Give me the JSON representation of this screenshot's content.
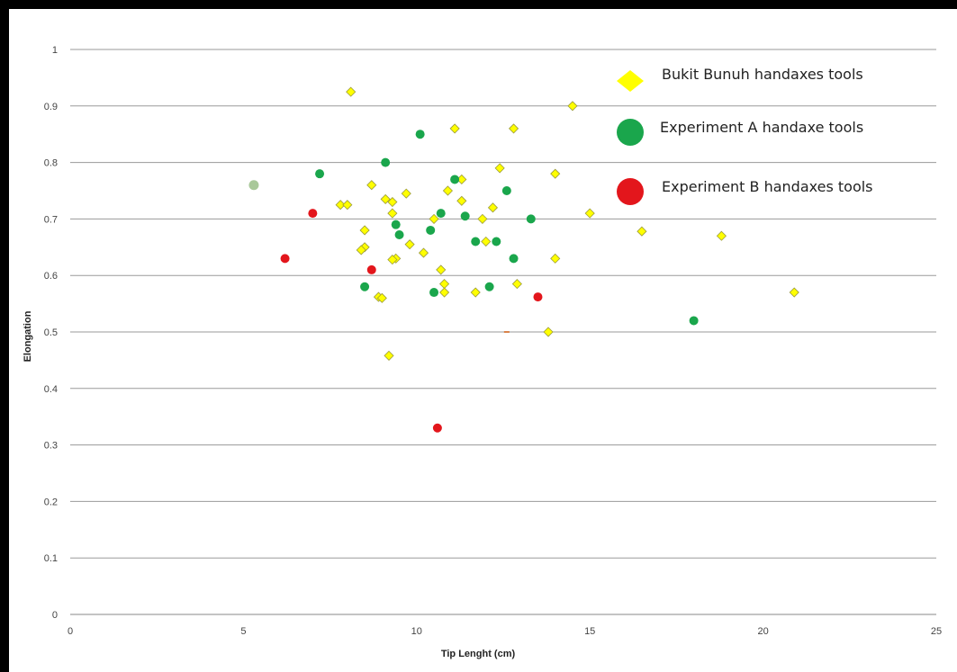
{
  "chart_data": {
    "type": "scatter",
    "xlabel": "Tip Lenght (cm)",
    "ylabel": "Elongation",
    "xlim": [
      0,
      25
    ],
    "ylim": [
      0,
      1
    ],
    "x_ticks": [
      0,
      5,
      10,
      15,
      20,
      25
    ],
    "y_ticks": [
      0,
      0.1,
      0.2,
      0.3,
      0.4,
      0.5,
      0.6,
      0.7,
      0.8,
      0.9,
      1
    ],
    "grid": "horizontal",
    "legend_position": "top-right",
    "series": [
      {
        "name": "Bukit Bunuh handaxes tools",
        "marker": "diamond",
        "color": "#ffff00",
        "points": [
          [
            8.1,
            0.925
          ],
          [
            14.5,
            0.9
          ],
          [
            12.8,
            0.86
          ],
          [
            11.1,
            0.86
          ],
          [
            12.4,
            0.79
          ],
          [
            14,
            0.78
          ],
          [
            11.3,
            0.77
          ],
          [
            8.7,
            0.76
          ],
          [
            10.9,
            0.75
          ],
          [
            9.7,
            0.745
          ],
          [
            9.1,
            0.735
          ],
          [
            11.3,
            0.732
          ],
          [
            9.3,
            0.73
          ],
          [
            7.8,
            0.725
          ],
          [
            8,
            0.725
          ],
          [
            12.2,
            0.72
          ],
          [
            9.3,
            0.71
          ],
          [
            15,
            0.71
          ],
          [
            11.9,
            0.7
          ],
          [
            10.5,
            0.7
          ],
          [
            8.5,
            0.68
          ],
          [
            16.5,
            0.678
          ],
          [
            18.8,
            0.67
          ],
          [
            12,
            0.66
          ],
          [
            9.8,
            0.655
          ],
          [
            8.5,
            0.65
          ],
          [
            8.4,
            0.645
          ],
          [
            10.2,
            0.64
          ],
          [
            9.4,
            0.63
          ],
          [
            9.3,
            0.628
          ],
          [
            14,
            0.63
          ],
          [
            10.7,
            0.61
          ],
          [
            10.8,
            0.585
          ],
          [
            12.9,
            0.585
          ],
          [
            11.7,
            0.57
          ],
          [
            10.8,
            0.57
          ],
          [
            20.9,
            0.57
          ],
          [
            8.9,
            0.562
          ],
          [
            9,
            0.56
          ],
          [
            13.8,
            0.5
          ],
          [
            9.2,
            0.458
          ]
        ]
      },
      {
        "name": "Experiment A handaxe tools",
        "marker": "circle",
        "color": "#1aa64c",
        "points": [
          [
            10.1,
            0.85
          ],
          [
            9.1,
            0.8
          ],
          [
            7.2,
            0.78
          ],
          [
            11.1,
            0.77
          ],
          [
            12.6,
            0.75
          ],
          [
            11.4,
            0.705
          ],
          [
            13.3,
            0.7
          ],
          [
            9.4,
            0.69
          ],
          [
            10.4,
            0.68
          ],
          [
            9.5,
            0.672
          ],
          [
            10.7,
            0.71
          ],
          [
            11.7,
            0.66
          ],
          [
            12.3,
            0.66
          ],
          [
            12.8,
            0.63
          ],
          [
            8.5,
            0.58
          ],
          [
            12.1,
            0.58
          ],
          [
            10.5,
            0.57
          ],
          [
            18,
            0.52
          ]
        ]
      },
      {
        "name": "Experiment B handaxes tools",
        "marker": "circle",
        "color": "#e3161c",
        "points": [
          [
            7,
            0.71
          ],
          [
            6.2,
            0.63
          ],
          [
            8.7,
            0.61
          ],
          [
            13.5,
            0.562
          ],
          [
            10.6,
            0.33
          ]
        ]
      }
    ],
    "extra_points": [
      {
        "x": 5.3,
        "y": 0.76,
        "marker": "circle",
        "color": "#a9c89a"
      },
      {
        "x": 12.6,
        "y": 0.5,
        "marker": "dash",
        "color": "#d9824a"
      }
    ]
  }
}
